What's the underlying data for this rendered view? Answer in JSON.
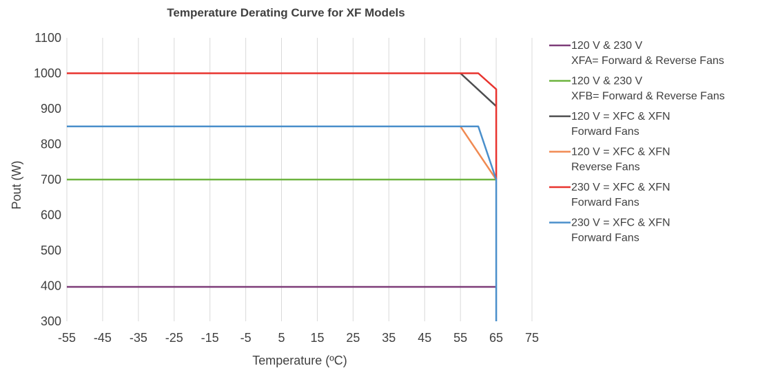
{
  "chart_data": {
    "type": "line",
    "title": "Temperature Derating Curve for XF Models",
    "xlabel": "Temperature (ºC)",
    "ylabel": "Pout (W)",
    "xlim": [
      -55,
      75
    ],
    "ylim": [
      300,
      1100
    ],
    "xticks": [
      -55,
      -45,
      -35,
      -25,
      -15,
      -5,
      5,
      15,
      25,
      35,
      45,
      55,
      65,
      75
    ],
    "yticks": [
      300,
      400,
      500,
      600,
      700,
      800,
      900,
      1000,
      1100
    ],
    "grid": "vertical",
    "legend_position": "right",
    "series": [
      {
        "name": "120 V & 230 V",
        "name_line2": "XFA= Forward & Reverse Fans",
        "color": "#7d3c78",
        "points": [
          [
            -55,
            397
          ],
          [
            65,
            397
          ]
        ]
      },
      {
        "name": "120 V & 230 V",
        "name_line2": "XFB= Forward & Reverse Fans",
        "color": "#6db33f",
        "points": [
          [
            -55,
            700
          ],
          [
            65,
            700
          ]
        ]
      },
      {
        "name": "120 V = XFC & XFN",
        "name_line2": "Forward Fans",
        "color": "#4d4d4f",
        "points": [
          [
            55,
            1000
          ],
          [
            65,
            907
          ]
        ]
      },
      {
        "name": "120 V = XFC & XFN",
        "name_line2": "Reverse Fans",
        "color": "#f08a52",
        "points": [
          [
            55,
            850
          ],
          [
            65,
            700
          ]
        ]
      },
      {
        "name": "230 V = XFC & XFN",
        "name_line2": "Forward Fans",
        "color": "#e8332e",
        "points": [
          [
            -55,
            1000
          ],
          [
            60,
            1000
          ],
          [
            65,
            955
          ],
          [
            65,
            700
          ]
        ]
      },
      {
        "name": "230 V = XFC & XFN",
        "name_line2": "Forward Fans",
        "color": "#4a8fcb",
        "points": [
          [
            -55,
            850
          ],
          [
            60,
            850
          ],
          [
            65,
            700
          ],
          [
            65,
            300
          ]
        ]
      }
    ]
  }
}
